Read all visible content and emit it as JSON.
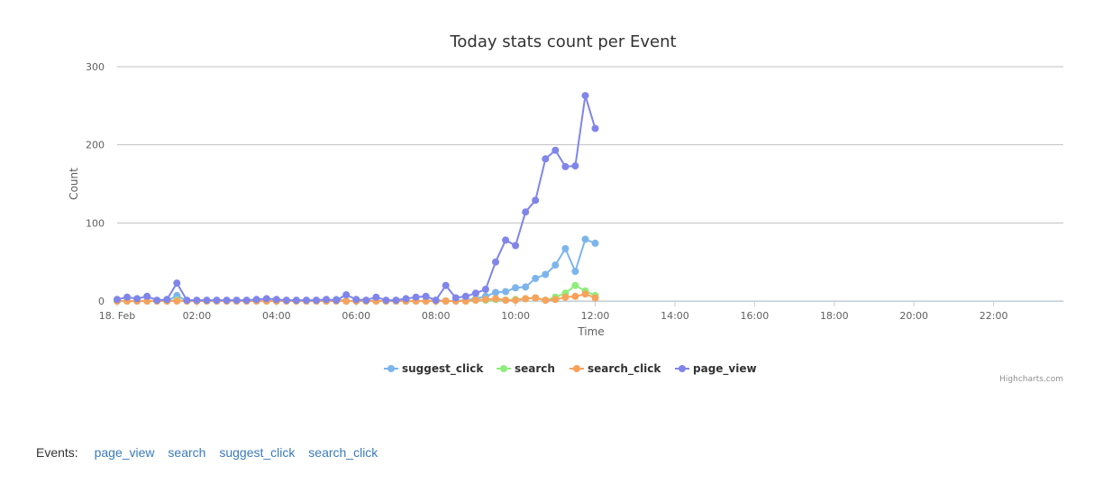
{
  "chart_data": {
    "type": "line",
    "title": "Today stats count per Event",
    "xlabel": "Time",
    "ylabel": "Count",
    "ylim": [
      0,
      300
    ],
    "yticks": [
      0,
      100,
      200,
      300
    ],
    "xlim": [
      "00:00",
      "23:45"
    ],
    "xticks": [
      {
        "time": "00:00",
        "label": "18. Feb"
      },
      {
        "time": "02:00",
        "label": "02:00"
      },
      {
        "time": "04:00",
        "label": "04:00"
      },
      {
        "time": "06:00",
        "label": "06:00"
      },
      {
        "time": "08:00",
        "label": "08:00"
      },
      {
        "time": "10:00",
        "label": "10:00"
      },
      {
        "time": "12:00",
        "label": "12:00"
      },
      {
        "time": "14:00",
        "label": "14:00"
      },
      {
        "time": "16:00",
        "label": "16:00"
      },
      {
        "time": "18:00",
        "label": "18:00"
      },
      {
        "time": "20:00",
        "label": "20:00"
      },
      {
        "time": "22:00",
        "label": "22:00"
      }
    ],
    "x": [
      "00:00",
      "00:15",
      "00:30",
      "00:45",
      "01:00",
      "01:15",
      "01:30",
      "01:45",
      "02:00",
      "02:15",
      "02:30",
      "02:45",
      "03:00",
      "03:15",
      "03:30",
      "03:45",
      "04:00",
      "04:15",
      "04:30",
      "04:45",
      "05:00",
      "05:15",
      "05:30",
      "05:45",
      "06:00",
      "06:15",
      "06:30",
      "06:45",
      "07:00",
      "07:15",
      "07:30",
      "07:45",
      "08:00",
      "08:15",
      "08:30",
      "08:45",
      "09:00",
      "09:15",
      "09:30",
      "09:45",
      "10:00",
      "10:15",
      "10:30",
      "10:45",
      "11:00",
      "11:15",
      "11:30",
      "11:45",
      "12:00"
    ],
    "series": [
      {
        "name": "suggest_click",
        "color": "#7cb5ec",
        "values": [
          0,
          0,
          0,
          0,
          0,
          0,
          7,
          0,
          0,
          0,
          0,
          0,
          0,
          0,
          0,
          0,
          0,
          0,
          0,
          0,
          0,
          0,
          2,
          0,
          0,
          0,
          0,
          0,
          0,
          0,
          0,
          0,
          1,
          0,
          0,
          1,
          3,
          6,
          11,
          12,
          17,
          18,
          29,
          34,
          46,
          67,
          38,
          79,
          74
        ]
      },
      {
        "name": "search",
        "color": "#90ed7d",
        "values": [
          0,
          0,
          0,
          0,
          0,
          0,
          1,
          0,
          0,
          0,
          0,
          0,
          0,
          0,
          0,
          0,
          0,
          0,
          0,
          0,
          0,
          0,
          0,
          0,
          0,
          0,
          0,
          0,
          0,
          0,
          0,
          0,
          0,
          0,
          0,
          0,
          1,
          1,
          2,
          1,
          2,
          3,
          4,
          1,
          5,
          10,
          20,
          13,
          7
        ]
      },
      {
        "name": "search_click",
        "color": "#f7a35c",
        "values": [
          0,
          0,
          0,
          0,
          0,
          0,
          0,
          0,
          0,
          0,
          0,
          0,
          0,
          0,
          0,
          0,
          0,
          0,
          0,
          0,
          0,
          0,
          0,
          0,
          0,
          0,
          0,
          0,
          0,
          0,
          0,
          0,
          0,
          0,
          0,
          0,
          1,
          2,
          3,
          1,
          1,
          3,
          4,
          1,
          2,
          5,
          6,
          9,
          4
        ]
      },
      {
        "name": "page_view",
        "color": "#8085e9",
        "values": [
          2,
          5,
          3,
          6,
          1,
          2,
          23,
          1,
          1,
          1,
          1,
          1,
          1,
          1,
          2,
          3,
          2,
          1,
          1,
          1,
          1,
          2,
          1,
          8,
          2,
          1,
          5,
          1,
          1,
          3,
          5,
          6,
          1,
          20,
          4,
          6,
          10,
          15,
          50,
          78,
          71,
          114,
          129,
          182,
          193,
          172,
          173,
          263,
          221
        ]
      }
    ],
    "legend_position": "bottom-center",
    "grid": true,
    "credits": "Highcharts.com"
  },
  "events": {
    "label": "Events:",
    "links": [
      "page_view",
      "search",
      "suggest_click",
      "search_click"
    ]
  }
}
